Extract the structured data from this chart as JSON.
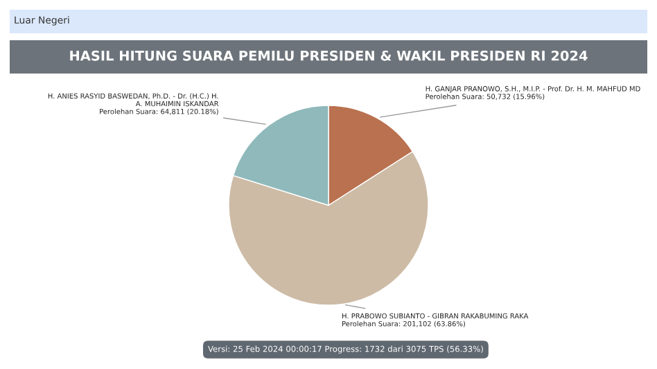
{
  "chart_data": {
    "type": "pie",
    "title": "HASIL HITUNG SUARA PEMILU PRESIDEN & WAKIL PRESIDEN RI 2024",
    "categories": [
      "H. GANJAR PRANOWO, S.H., M.I.P. - Prof. Dr. H. M. MAHFUD MD",
      "H. PRABOWO SUBIANTO - GIBRAN RAKABUMING RAKA",
      "H. ANIES RASYID BASWEDAN, Ph.D. - Dr. (H.C.) H.\nA. MUHAIMIN ISKANDAR"
    ],
    "values": [
      15.96,
      63.86,
      20.18
    ],
    "colors": [
      "#b9714f",
      "#cdbba6",
      "#8fb9bb"
    ],
    "value_labels": [
      "Perolehan Suara: 50,732 (15.96%)",
      "Perolehan Suara: 201,102 (63.86%)",
      "Perolehan Suara: 64,811 (20.18%)"
    ],
    "annotations": [
      "Luar Negeri",
      "Versi: 25 Feb 2024 00:00:17 Progress: 1732 dari 3075 TPS (56.33%)"
    ]
  }
}
